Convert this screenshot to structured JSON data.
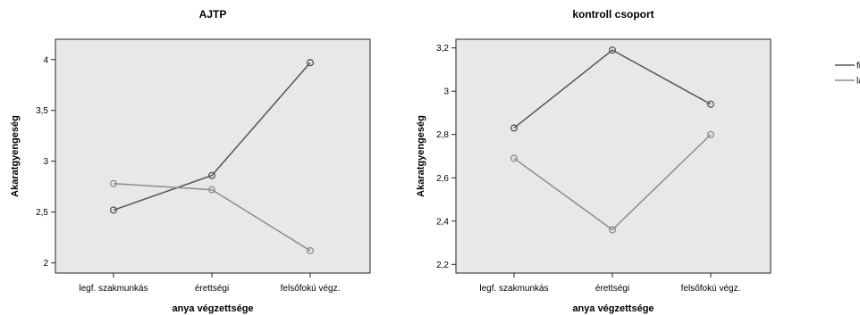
{
  "chart_data": [
    {
      "type": "line",
      "title": "AJTP",
      "xlabel": "anya végzettsége",
      "ylabel": "Akaratgyengeség",
      "categories": [
        "legf. szakmunkás",
        "érettségi",
        "felsőfokú végz."
      ],
      "ylim": [
        1.9,
        4.2
      ],
      "yticks": [
        2,
        2.5,
        3,
        3.5,
        4
      ],
      "ytick_labels": [
        "2",
        "2,5",
        "3",
        "3,5",
        "4"
      ],
      "grid": false,
      "series": [
        {
          "name": "fiú",
          "values": [
            2.52,
            2.86,
            3.97
          ],
          "color": "#555555"
        },
        {
          "name": "lány",
          "values": [
            2.78,
            2.72,
            2.12
          ],
          "color": "#8c8c8c"
        }
      ]
    },
    {
      "type": "line",
      "title": "kontroll csoport",
      "xlabel": "anya végzettsége",
      "ylabel": "Akaratgyengeség",
      "categories": [
        "legf. szakmunkás",
        "érettségi",
        "felsőfokú végz."
      ],
      "ylim": [
        2.16,
        3.24
      ],
      "yticks": [
        2.2,
        2.4,
        2.6,
        2.8,
        3.0,
        3.2
      ],
      "ytick_labels": [
        "2,2",
        "2,4",
        "2,6",
        "2,8",
        "3",
        "3,2"
      ],
      "grid": false,
      "series": [
        {
          "name": "fiú",
          "values": [
            2.83,
            3.19,
            2.94
          ],
          "color": "#555555"
        },
        {
          "name": "lány",
          "values": [
            2.69,
            2.36,
            2.8
          ],
          "color": "#8c8c8c"
        }
      ]
    }
  ],
  "legend": {
    "placement": "top-right",
    "items": [
      {
        "label": "fiú",
        "color": "#555555"
      },
      {
        "label": "lány",
        "color": "#8c8c8c"
      }
    ]
  },
  "colors": {
    "plot_background": "#e8e8e8",
    "frame": "#222222"
  }
}
